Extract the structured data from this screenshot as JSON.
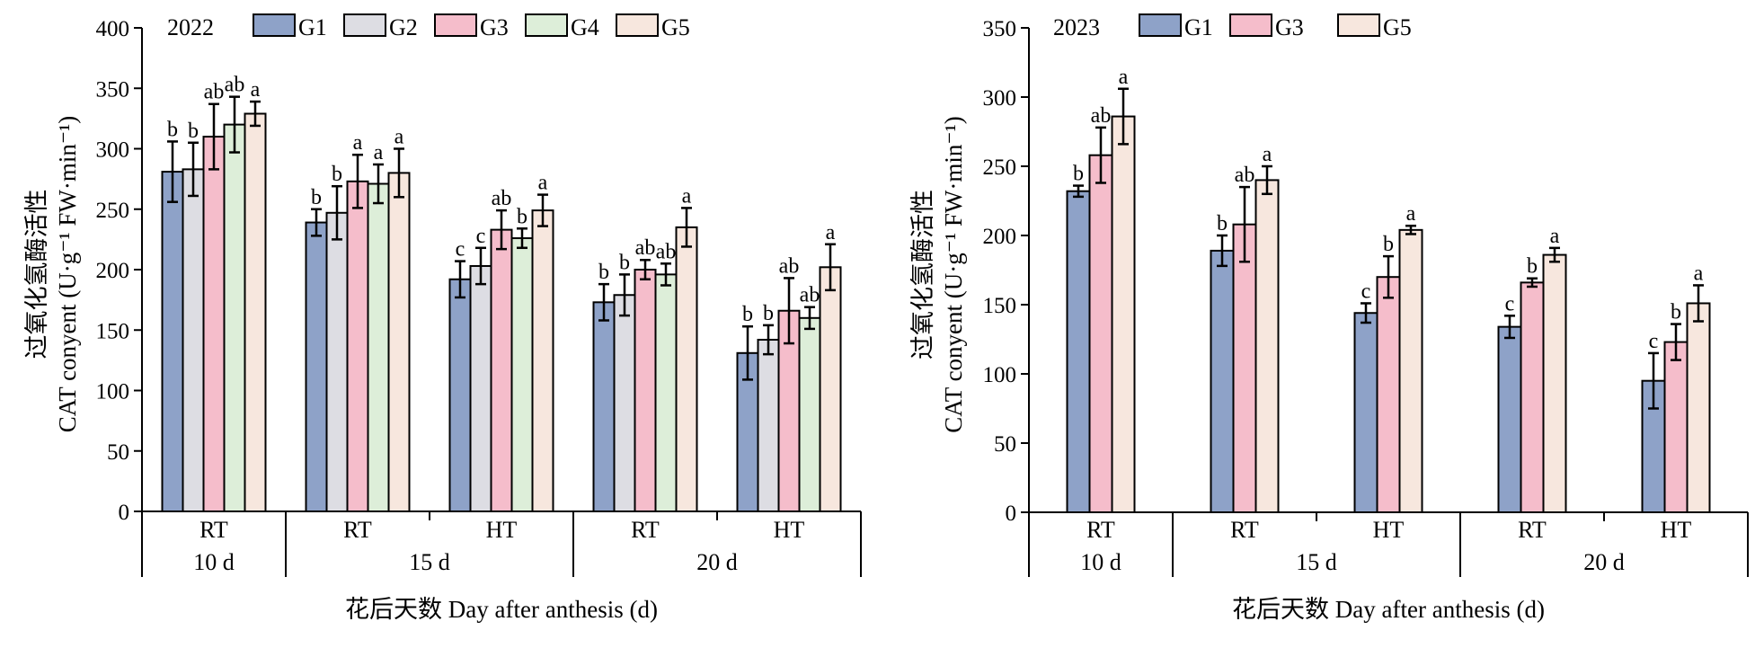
{
  "chart_data": [
    {
      "type": "bar",
      "year_label": "2022",
      "ylabel_cn": "过氧化氢酶活性",
      "ylabel_en": "CAT conyent (U·g⁻¹ FW·min⁻¹)",
      "xlabel": "花后天数 Day after anthesis (d)",
      "ylim": [
        0,
        400
      ],
      "yticks": [
        0,
        50,
        100,
        150,
        200,
        250,
        300,
        350,
        400
      ],
      "series": [
        {
          "name": "G1",
          "color": "#8EA2C8"
        },
        {
          "name": "G2",
          "color": "#DDDDE3"
        },
        {
          "name": "G3",
          "color": "#F5BDCB"
        },
        {
          "name": "G4",
          "color": "#DDEED9"
        },
        {
          "name": "G5",
          "color": "#F7E7DE"
        }
      ],
      "categories": [
        {
          "treatment": "RT",
          "day": "10 d",
          "values": [
            281,
            283,
            310,
            320,
            329
          ],
          "errors": [
            25,
            22,
            27,
            23,
            10
          ],
          "letters": [
            "b",
            "b",
            "ab",
            "ab",
            "a"
          ]
        },
        {
          "treatment": "RT",
          "day": "15 d",
          "values": [
            239,
            247,
            273,
            271,
            280
          ],
          "errors": [
            11,
            22,
            22,
            16,
            20
          ],
          "letters": [
            "b",
            "b",
            "a",
            "a",
            "a"
          ]
        },
        {
          "treatment": "HT",
          "day": "15 d",
          "values": [
            192,
            203,
            233,
            226,
            249
          ],
          "errors": [
            15,
            15,
            16,
            8,
            13
          ],
          "letters": [
            "c",
            "c",
            "ab",
            "b",
            "a"
          ]
        },
        {
          "treatment": "RT",
          "day": "20 d",
          "values": [
            173,
            179,
            200,
            196,
            235
          ],
          "errors": [
            15,
            17,
            8,
            9,
            16
          ],
          "letters": [
            "b",
            "b",
            "ab",
            "ab",
            "a"
          ]
        },
        {
          "treatment": "HT",
          "day": "20 d",
          "values": [
            131,
            142,
            166,
            160,
            202
          ],
          "errors": [
            22,
            12,
            27,
            9,
            19
          ],
          "letters": [
            "b",
            "b",
            "ab",
            "ab",
            "a"
          ]
        }
      ],
      "day_groups": [
        {
          "label": "10 d",
          "categories": [
            0
          ]
        },
        {
          "label": "15 d",
          "categories": [
            1,
            2
          ]
        },
        {
          "label": "20 d",
          "categories": [
            3,
            4
          ]
        }
      ]
    },
    {
      "type": "bar",
      "year_label": "2023",
      "ylabel_cn": "过氧化氢酶活性",
      "ylabel_en": "CAT conyent (U·g⁻¹ FW·min⁻¹)",
      "xlabel": "花后天数 Day after anthesis (d)",
      "ylim": [
        0,
        350
      ],
      "yticks": [
        0,
        50,
        100,
        150,
        200,
        250,
        300,
        350
      ],
      "series": [
        {
          "name": "G1",
          "color": "#8EA2C8"
        },
        {
          "name": "G3",
          "color": "#F5BDCB"
        },
        {
          "name": "G5",
          "color": "#F7E7DE"
        }
      ],
      "categories": [
        {
          "treatment": "RT",
          "day": "10 d",
          "values": [
            232,
            258,
            286
          ],
          "errors": [
            4,
            20,
            20
          ],
          "letters": [
            "b",
            "ab",
            "a"
          ]
        },
        {
          "treatment": "RT",
          "day": "15 d",
          "values": [
            189,
            208,
            240
          ],
          "errors": [
            11,
            27,
            10
          ],
          "letters": [
            "b",
            "ab",
            "a"
          ]
        },
        {
          "treatment": "HT",
          "day": "15 d",
          "values": [
            144,
            170,
            204
          ],
          "errors": [
            7,
            15,
            3
          ],
          "letters": [
            "c",
            "b",
            "a"
          ]
        },
        {
          "treatment": "RT",
          "day": "20 d",
          "values": [
            134,
            166,
            186
          ],
          "errors": [
            8,
            3,
            5
          ],
          "letters": [
            "c",
            "b",
            "a"
          ]
        },
        {
          "treatment": "HT",
          "day": "20 d",
          "values": [
            95,
            123,
            151
          ],
          "errors": [
            20,
            13,
            13
          ],
          "letters": [
            "c",
            "b",
            "a"
          ]
        }
      ],
      "day_groups": [
        {
          "label": "10 d",
          "categories": [
            0
          ]
        },
        {
          "label": "15 d",
          "categories": [
            1,
            2
          ]
        },
        {
          "label": "20 d",
          "categories": [
            3,
            4
          ]
        }
      ]
    }
  ]
}
